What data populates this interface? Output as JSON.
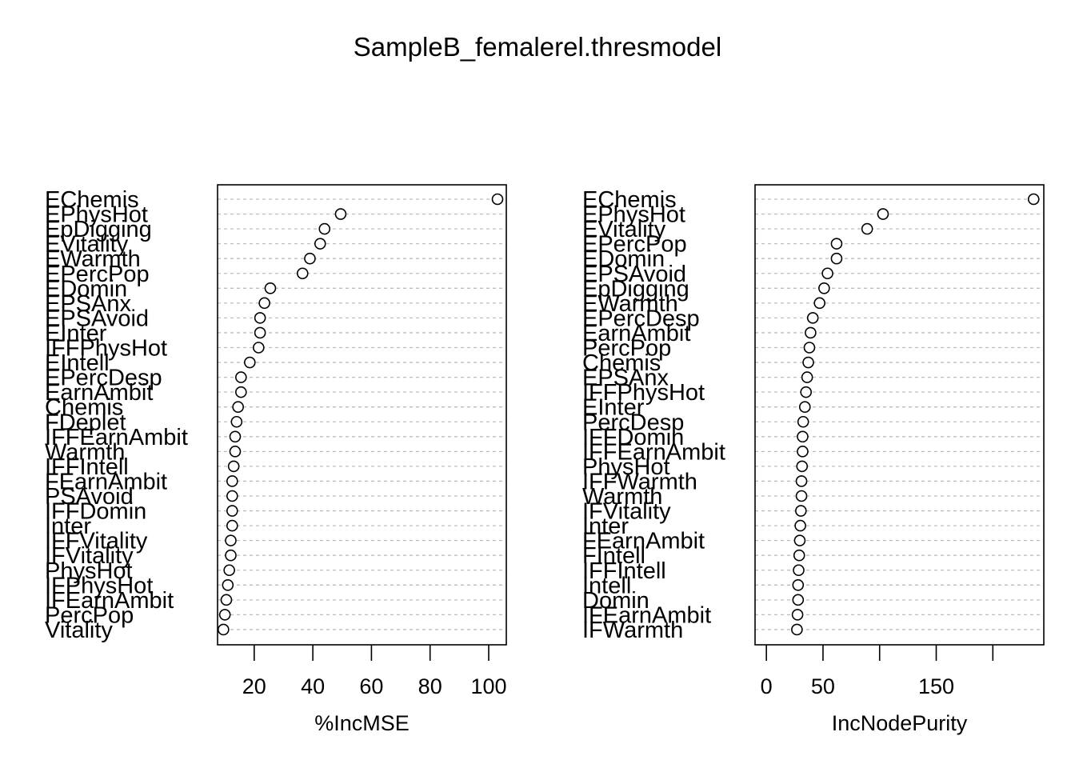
{
  "chart_data": {
    "title": "SampleB_femalerel.thresmodel",
    "type": "scatter",
    "panels": [
      {
        "xlabel": "%IncMSE",
        "xlim": [
          7.5,
          106
        ],
        "xticks": [
          20,
          40,
          60,
          80,
          100
        ],
        "tick_labels": [
          "20",
          "40",
          "60",
          "80",
          "100"
        ],
        "labels": [
          "EChemis",
          "EPhysHot",
          "EpDigging",
          "EVitality",
          "EWarmth",
          "EPercPop",
          "EDomin",
          "EPSAnx",
          "EPSAvoid",
          "EInter",
          "IFFPhysHot",
          "EIntell",
          "EPercDesp",
          "EarnAmbit",
          "Chemis",
          "FDeplet",
          "IFFEarnAmbit",
          "Warmth",
          "IFFIntell",
          "FEarnAmbit",
          "PSAvoid",
          "IFFDomin",
          "Inter",
          "IFFVitality",
          "IFVitality",
          "PhysHot",
          "IFPhysHot",
          "IFEarnAmbit",
          "PercPop",
          "Vitality"
        ],
        "values": [
          103,
          49.5,
          44,
          42.5,
          39,
          36.5,
          25.5,
          23.5,
          22,
          22,
          21.5,
          18.5,
          15.5,
          15.5,
          14.5,
          14,
          13.5,
          13.5,
          13,
          12.5,
          12.5,
          12.5,
          12.5,
          12,
          12,
          11.5,
          11,
          10.5,
          10,
          9.5
        ]
      },
      {
        "xlabel": "IncNodePurity",
        "xlim": [
          -10,
          245
        ],
        "xticks": [
          0,
          50,
          100,
          150,
          200
        ],
        "tick_labels": [
          "0",
          "50",
          "",
          "150",
          ""
        ],
        "labels": [
          "EChemis",
          "EPhysHot",
          "EVitality",
          "EPercPop",
          "EDomin",
          "EPSAvoid",
          "EpDigging",
          "EWarmth",
          "EPercDesp",
          "EarnAmbit",
          "PercPop",
          "Chemis",
          "EPSAnx",
          "IFFPhysHot",
          "EInter",
          "PercDesp",
          "IFFDomin",
          "IFFEarnAmbit",
          "PhysHot",
          "IFFWarmth",
          "Warmth",
          "IFVitality",
          "Inter",
          "FEarnAmbit",
          "FIntell",
          "IFFIntell",
          "Intell",
          "Domin",
          "IFEarnAmbit",
          "IFWarmth"
        ],
        "values": [
          236,
          103,
          89,
          62,
          62,
          54,
          51,
          47,
          41,
          39,
          38,
          37,
          36,
          35,
          34,
          32.5,
          32,
          32,
          31.5,
          31,
          31,
          30.5,
          30,
          29.5,
          29,
          28.5,
          28,
          28,
          27.5,
          27
        ]
      }
    ]
  }
}
